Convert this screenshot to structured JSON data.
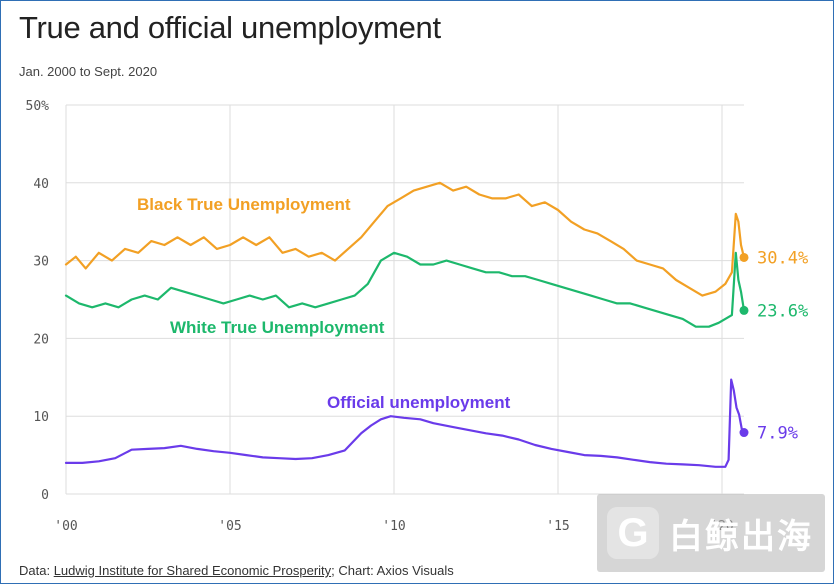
{
  "title": "True and official unemployment",
  "subtitle": "Jan. 2000 to Sept. 2020",
  "footer": {
    "prefix": "Data: ",
    "source_link": "Ludwig Institute for Shared Economic Prosperity",
    "suffix": "; Chart: Axios Visuals"
  },
  "watermark": {
    "logo_letter": "G",
    "text": "白鲸出海"
  },
  "colors": {
    "black": "#f2a024",
    "white": "#1db86c",
    "official": "#6a3bea",
    "grid": "#dddddd",
    "frame": "#2f6fb5"
  },
  "chart_data": {
    "type": "line",
    "title": "True and official unemployment",
    "subtitle": "Jan. 2000 to Sept. 2020",
    "xlabel": "",
    "ylabel": "",
    "x_range": [
      2000,
      2020.67
    ],
    "ylim": [
      0,
      50
    ],
    "y_ticks": [
      0,
      10,
      20,
      30,
      40,
      50
    ],
    "y_tick_labels": [
      "0",
      "10",
      "20",
      "30",
      "40",
      "50%"
    ],
    "x_ticks": [
      2000,
      2005,
      2010,
      2015,
      2020
    ],
    "x_tick_labels": [
      "'00",
      "'05",
      "'10",
      "'15",
      "'20"
    ],
    "grid": true,
    "series": [
      {
        "name": "Black True Unemployment",
        "key": "black",
        "label": "Black True Unemployment",
        "end_label": "30.4%",
        "points": [
          [
            2000.0,
            29.5
          ],
          [
            2000.3,
            30.5
          ],
          [
            2000.6,
            29.0
          ],
          [
            2001.0,
            31.0
          ],
          [
            2001.4,
            30.0
          ],
          [
            2001.8,
            31.5
          ],
          [
            2002.2,
            31.0
          ],
          [
            2002.6,
            32.5
          ],
          [
            2003.0,
            32.0
          ],
          [
            2003.4,
            33.0
          ],
          [
            2003.8,
            32.0
          ],
          [
            2004.2,
            33.0
          ],
          [
            2004.6,
            31.5
          ],
          [
            2005.0,
            32.0
          ],
          [
            2005.4,
            33.0
          ],
          [
            2005.8,
            32.0
          ],
          [
            2006.2,
            33.0
          ],
          [
            2006.6,
            31.0
          ],
          [
            2007.0,
            31.5
          ],
          [
            2007.4,
            30.5
          ],
          [
            2007.8,
            31.0
          ],
          [
            2008.2,
            30.0
          ],
          [
            2008.6,
            31.5
          ],
          [
            2009.0,
            33.0
          ],
          [
            2009.4,
            35.0
          ],
          [
            2009.8,
            37.0
          ],
          [
            2010.2,
            38.0
          ],
          [
            2010.6,
            39.0
          ],
          [
            2011.0,
            39.5
          ],
          [
            2011.4,
            40.0
          ],
          [
            2011.8,
            39.0
          ],
          [
            2012.2,
            39.5
          ],
          [
            2012.6,
            38.5
          ],
          [
            2013.0,
            38.0
          ],
          [
            2013.4,
            38.0
          ],
          [
            2013.8,
            38.5
          ],
          [
            2014.2,
            37.0
          ],
          [
            2014.6,
            37.5
          ],
          [
            2015.0,
            36.5
          ],
          [
            2015.4,
            35.0
          ],
          [
            2015.8,
            34.0
          ],
          [
            2016.2,
            33.5
          ],
          [
            2016.6,
            32.5
          ],
          [
            2017.0,
            31.5
          ],
          [
            2017.4,
            30.0
          ],
          [
            2017.8,
            29.5
          ],
          [
            2018.2,
            29.0
          ],
          [
            2018.6,
            27.5
          ],
          [
            2019.0,
            26.5
          ],
          [
            2019.4,
            25.5
          ],
          [
            2019.8,
            26.0
          ],
          [
            2020.1,
            27.0
          ],
          [
            2020.3,
            28.5
          ],
          [
            2020.42,
            36.0
          ],
          [
            2020.5,
            35.0
          ],
          [
            2020.58,
            32.0
          ],
          [
            2020.67,
            30.4
          ]
        ]
      },
      {
        "name": "White True Unemployment",
        "key": "white",
        "label": "White True Unemployment",
        "end_label": "23.6%",
        "points": [
          [
            2000.0,
            25.5
          ],
          [
            2000.4,
            24.5
          ],
          [
            2000.8,
            24.0
          ],
          [
            2001.2,
            24.5
          ],
          [
            2001.6,
            24.0
          ],
          [
            2002.0,
            25.0
          ],
          [
            2002.4,
            25.5
          ],
          [
            2002.8,
            25.0
          ],
          [
            2003.2,
            26.5
          ],
          [
            2003.6,
            26.0
          ],
          [
            2004.0,
            25.5
          ],
          [
            2004.4,
            25.0
          ],
          [
            2004.8,
            24.5
          ],
          [
            2005.2,
            25.0
          ],
          [
            2005.6,
            25.5
          ],
          [
            2006.0,
            25.0
          ],
          [
            2006.4,
            25.5
          ],
          [
            2006.8,
            24.0
          ],
          [
            2007.2,
            24.5
          ],
          [
            2007.6,
            24.0
          ],
          [
            2008.0,
            24.5
          ],
          [
            2008.4,
            25.0
          ],
          [
            2008.8,
            25.5
          ],
          [
            2009.2,
            27.0
          ],
          [
            2009.6,
            30.0
          ],
          [
            2010.0,
            31.0
          ],
          [
            2010.4,
            30.5
          ],
          [
            2010.8,
            29.5
          ],
          [
            2011.2,
            29.5
          ],
          [
            2011.6,
            30.0
          ],
          [
            2012.0,
            29.5
          ],
          [
            2012.4,
            29.0
          ],
          [
            2012.8,
            28.5
          ],
          [
            2013.2,
            28.5
          ],
          [
            2013.6,
            28.0
          ],
          [
            2014.0,
            28.0
          ],
          [
            2014.4,
            27.5
          ],
          [
            2014.8,
            27.0
          ],
          [
            2015.2,
            26.5
          ],
          [
            2015.6,
            26.0
          ],
          [
            2016.0,
            25.5
          ],
          [
            2016.4,
            25.0
          ],
          [
            2016.8,
            24.5
          ],
          [
            2017.2,
            24.5
          ],
          [
            2017.6,
            24.0
          ],
          [
            2018.0,
            23.5
          ],
          [
            2018.4,
            23.0
          ],
          [
            2018.8,
            22.5
          ],
          [
            2019.2,
            21.5
          ],
          [
            2019.6,
            21.5
          ],
          [
            2019.9,
            22.0
          ],
          [
            2020.1,
            22.5
          ],
          [
            2020.3,
            23.0
          ],
          [
            2020.42,
            31.0
          ],
          [
            2020.5,
            27.5
          ],
          [
            2020.58,
            26.0
          ],
          [
            2020.67,
            23.6
          ]
        ]
      },
      {
        "name": "Official unemployment",
        "key": "official",
        "label": "Official unemployment",
        "end_label": "7.9%",
        "points": [
          [
            2000.0,
            4.0
          ],
          [
            2000.5,
            4.0
          ],
          [
            2001.0,
            4.2
          ],
          [
            2001.5,
            4.6
          ],
          [
            2002.0,
            5.7
          ],
          [
            2002.5,
            5.8
          ],
          [
            2003.0,
            5.9
          ],
          [
            2003.5,
            6.2
          ],
          [
            2004.0,
            5.8
          ],
          [
            2004.5,
            5.5
          ],
          [
            2005.0,
            5.3
          ],
          [
            2005.5,
            5.0
          ],
          [
            2006.0,
            4.7
          ],
          [
            2006.5,
            4.6
          ],
          [
            2007.0,
            4.5
          ],
          [
            2007.5,
            4.6
          ],
          [
            2008.0,
            5.0
          ],
          [
            2008.5,
            5.6
          ],
          [
            2009.0,
            7.8
          ],
          [
            2009.3,
            8.8
          ],
          [
            2009.6,
            9.6
          ],
          [
            2009.9,
            10.0
          ],
          [
            2010.3,
            9.8
          ],
          [
            2010.8,
            9.6
          ],
          [
            2011.2,
            9.1
          ],
          [
            2011.8,
            8.6
          ],
          [
            2012.3,
            8.2
          ],
          [
            2012.8,
            7.8
          ],
          [
            2013.3,
            7.5
          ],
          [
            2013.8,
            7.0
          ],
          [
            2014.3,
            6.3
          ],
          [
            2014.8,
            5.8
          ],
          [
            2015.3,
            5.4
          ],
          [
            2015.8,
            5.0
          ],
          [
            2016.3,
            4.9
          ],
          [
            2016.8,
            4.7
          ],
          [
            2017.3,
            4.4
          ],
          [
            2017.8,
            4.1
          ],
          [
            2018.3,
            3.9
          ],
          [
            2018.8,
            3.8
          ],
          [
            2019.3,
            3.7
          ],
          [
            2019.8,
            3.5
          ],
          [
            2020.1,
            3.5
          ],
          [
            2020.2,
            4.4
          ],
          [
            2020.28,
            14.7
          ],
          [
            2020.36,
            13.3
          ],
          [
            2020.44,
            11.1
          ],
          [
            2020.52,
            10.2
          ],
          [
            2020.6,
            8.4
          ],
          [
            2020.67,
            7.9
          ]
        ]
      }
    ]
  }
}
